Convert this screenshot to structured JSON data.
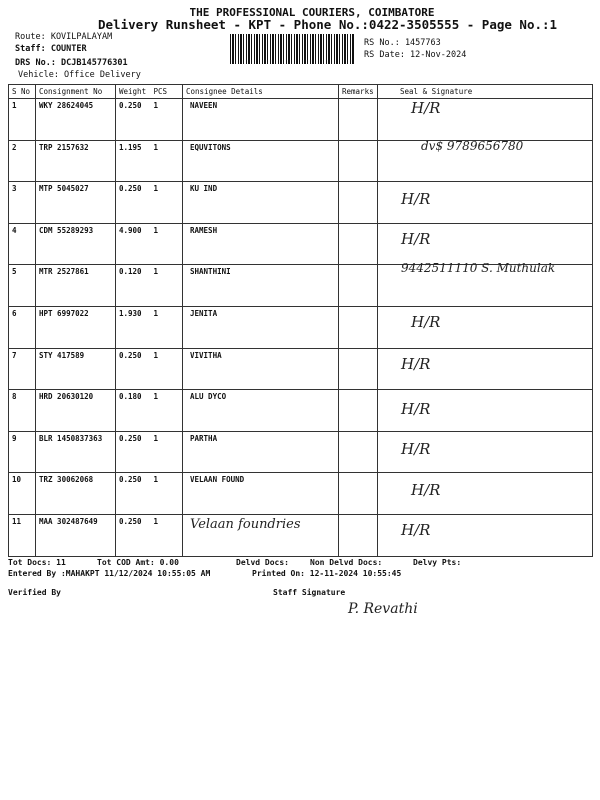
{
  "header": {
    "company": "THE PROFESSIONAL COURIERS, COIMBATORE",
    "title": "Delivery Runsheet - KPT - Phone No.:0422-3505555 - Page No.:1",
    "route": "Route: KOVILPALAYAM",
    "staff": "Staff: COUNTER",
    "drs_no": "DRS No.: DCJB145776301",
    "vehicle": "Vehicle: Office Delivery",
    "rs_no": "RS No.: 1457763",
    "rs_date": "RS Date: 12-Nov-2024"
  },
  "table": {
    "columns": [
      "S No",
      "Consignment No",
      "Weight",
      "PCS",
      "Consignee Details",
      "Remarks",
      "Seal & Signature"
    ],
    "rows": [
      {
        "sno": "1",
        "cons": "WKY 28624045",
        "weight": "0.250",
        "pcs": "1",
        "consignee": "NAVEEN",
        "hand": "",
        "sig": "H/R"
      },
      {
        "sno": "2",
        "cons": "TRP 2157632",
        "weight": "1.195",
        "pcs": "1",
        "consignee": "EQUVITONS",
        "hand": "",
        "sig": "dv$ 9789656780"
      },
      {
        "sno": "3",
        "cons": "MTP 5045027",
        "weight": "0.250",
        "pcs": "1",
        "consignee": "KU IND",
        "hand": "",
        "sig": "H/R"
      },
      {
        "sno": "4",
        "cons": "CDM 55289293",
        "weight": "4.900",
        "pcs": "1",
        "consignee": "RAMESH",
        "hand": "",
        "sig": "H/R"
      },
      {
        "sno": "5",
        "cons": "MTR 2527861",
        "weight": "0.120",
        "pcs": "1",
        "consignee": "SHANTHINI",
        "hand": "",
        "sig": "9442511110 S. Muthulak"
      },
      {
        "sno": "6",
        "cons": "HPT 6997022",
        "weight": "1.930",
        "pcs": "1",
        "consignee": "JENITA",
        "hand": "",
        "sig": "H/R"
      },
      {
        "sno": "7",
        "cons": "STY 417589",
        "weight": "0.250",
        "pcs": "1",
        "consignee": "VIVITHA",
        "hand": "",
        "sig": "H/R"
      },
      {
        "sno": "8",
        "cons": "HRD 20630120",
        "weight": "0.180",
        "pcs": "1",
        "consignee": "ALU DYCO",
        "hand": "",
        "sig": "H/R"
      },
      {
        "sno": "9",
        "cons": "BLR 1450837363",
        "weight": "0.250",
        "pcs": "1",
        "consignee": "PARTHA",
        "hand": "",
        "sig": "H/R"
      },
      {
        "sno": "10",
        "cons": "TRZ 30062068",
        "weight": "0.250",
        "pcs": "1",
        "consignee": "VELAAN FOUND",
        "hand": "",
        "sig": "H/R"
      },
      {
        "sno": "11",
        "cons": "MAA 302487649",
        "weight": "0.250",
        "pcs": "1",
        "consignee": "",
        "hand": "Velaan foundries",
        "sig": "H/R"
      }
    ]
  },
  "footer": {
    "tot_docs": "Tot Docs:  11",
    "tot_cod": "Tot COD Amt:    0.00",
    "delvd": "Delvd Docs:",
    "non_delvd": "Non Delvd Docs:",
    "delvy_pts": "Delvy Pts:",
    "entered": "Entered By :MAHAKPT 11/12/2024 10:55:05 AM",
    "printed": "Printed On: 12-11-2024 10:55:45",
    "verified": "Verified By",
    "staff_sig": "Staff Signature",
    "staff_sig_hand": "P. Revathi"
  }
}
